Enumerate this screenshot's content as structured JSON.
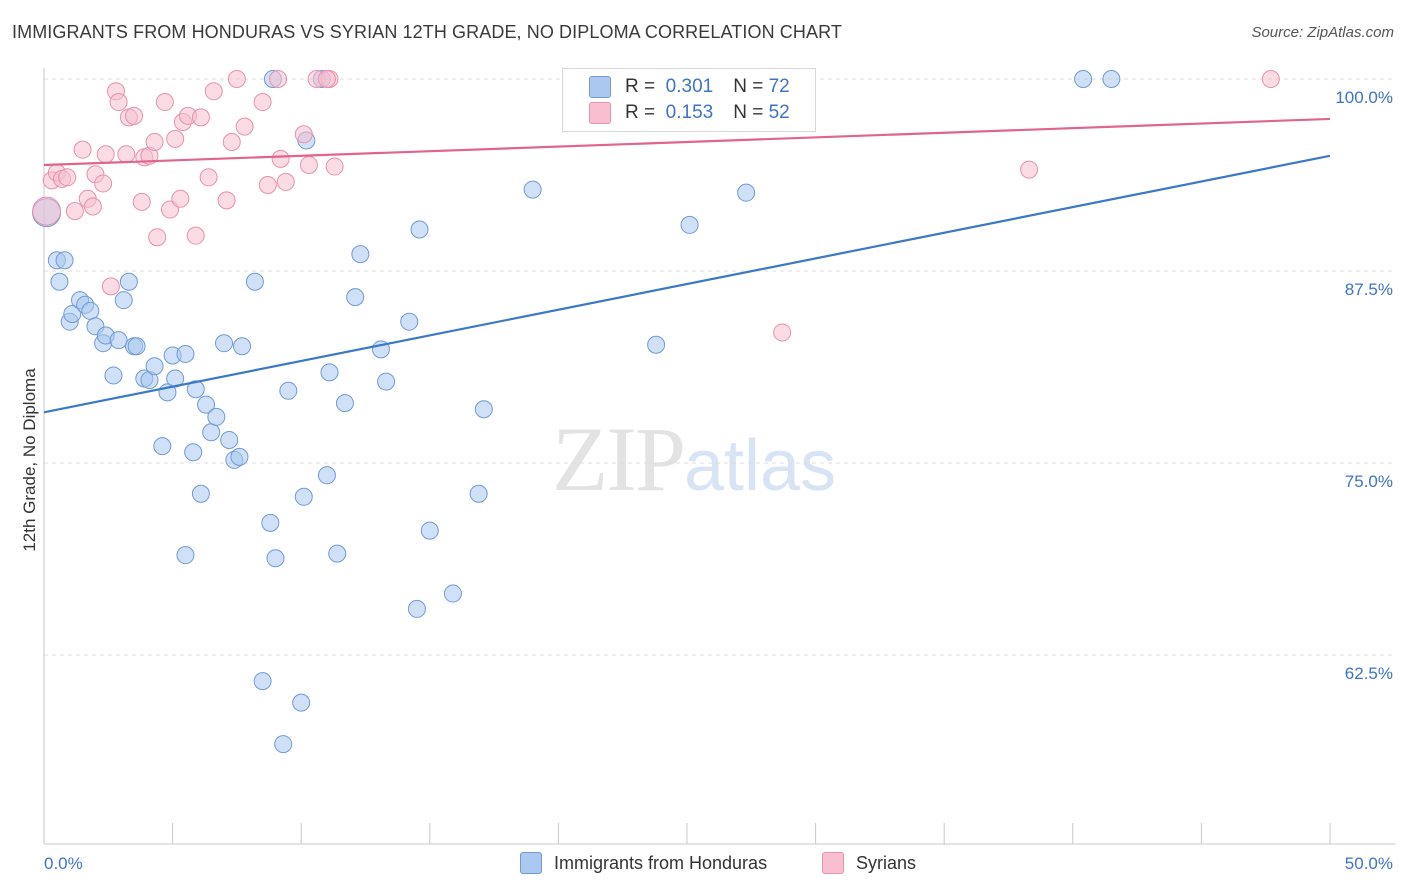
{
  "header": {
    "title": "IMMIGRANTS FROM HONDURAS VS SYRIAN 12TH GRADE, NO DIPLOMA CORRELATION CHART",
    "source": "Source: ZipAtlas.com"
  },
  "watermark": {
    "zip": "ZIP",
    "atlas": "atlas"
  },
  "legend_top": [
    {
      "r_label": "R =",
      "r_value": "0.301",
      "n_label": "N =",
      "n_value": "72",
      "color": "#aac8f0"
    },
    {
      "r_label": "R =",
      "r_value": "0.153",
      "n_label": "N =",
      "n_value": "52",
      "color": "#f7bfd0"
    }
  ],
  "chart_data": {
    "type": "scatter",
    "title": "IMMIGRANTS FROM HONDURAS VS SYRIAN 12TH GRADE, NO DIPLOMA CORRELATION CHART",
    "xlabel": "",
    "ylabel": "12th Grade, No Diploma",
    "xlim": [
      0,
      50
    ],
    "ylim": [
      50,
      100
    ],
    "x_tick_labels": [
      "0.0%",
      "50.0%"
    ],
    "y_ticks": [
      62.5,
      75.0,
      87.5,
      100.0
    ],
    "y_tick_labels": [
      "62.5%",
      "75.0%",
      "87.5%",
      "100.0%"
    ],
    "grid": "horizontal dashed",
    "legend_placement": "bottom",
    "colors": {
      "honduras": "#aac8f0",
      "honduras_line": "#3a78c8",
      "syrians": "#f7bfd0",
      "syrians_line": "#e0658c",
      "tick_label": "#3d74c9"
    },
    "series": [
      {
        "name": "Immigrants from Honduras",
        "trend": [
          [
            0,
            78.3
          ],
          [
            50,
            95.0
          ]
        ],
        "points": [
          [
            0.1,
            91.3
          ],
          [
            0.5,
            88.2
          ],
          [
            0.6,
            86.8
          ],
          [
            0.8,
            88.2
          ],
          [
            1.0,
            84.2
          ],
          [
            1.1,
            84.7
          ],
          [
            1.4,
            85.6
          ],
          [
            1.6,
            85.3
          ],
          [
            1.8,
            84.9
          ],
          [
            2.0,
            83.9
          ],
          [
            2.3,
            82.8
          ],
          [
            2.4,
            83.3
          ],
          [
            2.7,
            80.7
          ],
          [
            2.9,
            83.0
          ],
          [
            3.1,
            85.6
          ],
          [
            3.3,
            86.8
          ],
          [
            3.5,
            82.6
          ],
          [
            3.6,
            82.6
          ],
          [
            3.9,
            80.5
          ],
          [
            4.1,
            80.4
          ],
          [
            4.3,
            81.3
          ],
          [
            4.6,
            76.1
          ],
          [
            4.8,
            79.6
          ],
          [
            5.0,
            82.0
          ],
          [
            5.1,
            80.5
          ],
          [
            5.5,
            82.1
          ],
          [
            5.5,
            69.0
          ],
          [
            5.8,
            75.7
          ],
          [
            5.9,
            79.8
          ],
          [
            6.1,
            73.0
          ],
          [
            6.3,
            78.8
          ],
          [
            6.5,
            77.0
          ],
          [
            6.7,
            78.0
          ],
          [
            7.0,
            82.8
          ],
          [
            7.2,
            76.5
          ],
          [
            7.4,
            75.2
          ],
          [
            7.6,
            75.4
          ],
          [
            7.7,
            82.6
          ],
          [
            8.2,
            86.8
          ],
          [
            8.5,
            60.8
          ],
          [
            8.8,
            71.1
          ],
          [
            8.9,
            100.0
          ],
          [
            9.0,
            68.8
          ],
          [
            9.5,
            79.7
          ],
          [
            10.0,
            59.4
          ],
          [
            10.1,
            72.8
          ],
          [
            10.2,
            96.0
          ],
          [
            9.3,
            56.7
          ],
          [
            10.8,
            100.0
          ],
          [
            11.0,
            74.2
          ],
          [
            11.1,
            80.9
          ],
          [
            11.4,
            69.1
          ],
          [
            11.7,
            78.9
          ],
          [
            12.1,
            85.8
          ],
          [
            12.3,
            88.6
          ],
          [
            13.1,
            82.4
          ],
          [
            13.3,
            80.3
          ],
          [
            14.2,
            84.2
          ],
          [
            14.6,
            90.2
          ],
          [
            14.5,
            65.5
          ],
          [
            15.0,
            70.6
          ],
          [
            15.9,
            66.5
          ],
          [
            16.9,
            73.0
          ],
          [
            17.1,
            78.5
          ],
          [
            19.0,
            92.8
          ],
          [
            23.8,
            82.7
          ],
          [
            25.1,
            90.5
          ],
          [
            27.0,
            100.0
          ],
          [
            27.3,
            92.6
          ],
          [
            28.0,
            100.0
          ],
          [
            40.4,
            100.0
          ],
          [
            41.5,
            100.0
          ]
        ]
      },
      {
        "name": "Syrians",
        "trend": [
          [
            0,
            94.4
          ],
          [
            50,
            97.4
          ]
        ],
        "points": [
          [
            0.1,
            91.4
          ],
          [
            0.3,
            93.4
          ],
          [
            0.5,
            93.9
          ],
          [
            0.7,
            93.5
          ],
          [
            0.9,
            93.6
          ],
          [
            1.2,
            91.4
          ],
          [
            1.5,
            95.4
          ],
          [
            1.7,
            92.2
          ],
          [
            1.9,
            91.7
          ],
          [
            2.0,
            93.8
          ],
          [
            2.3,
            93.2
          ],
          [
            2.4,
            95.1
          ],
          [
            2.6,
            86.5
          ],
          [
            2.8,
            99.2
          ],
          [
            2.9,
            98.5
          ],
          [
            3.2,
            95.1
          ],
          [
            3.3,
            97.5
          ],
          [
            3.5,
            97.6
          ],
          [
            3.8,
            92.0
          ],
          [
            3.9,
            94.9
          ],
          [
            4.1,
            95.0
          ],
          [
            4.3,
            95.9
          ],
          [
            4.4,
            89.7
          ],
          [
            4.7,
            98.5
          ],
          [
            4.9,
            91.5
          ],
          [
            5.1,
            96.1
          ],
          [
            5.3,
            92.2
          ],
          [
            5.4,
            97.2
          ],
          [
            5.6,
            97.6
          ],
          [
            5.9,
            89.8
          ],
          [
            6.1,
            97.5
          ],
          [
            6.4,
            93.6
          ],
          [
            6.6,
            99.2
          ],
          [
            7.1,
            92.1
          ],
          [
            7.3,
            95.9
          ],
          [
            7.5,
            100.0
          ],
          [
            7.8,
            96.9
          ],
          [
            8.5,
            98.5
          ],
          [
            8.7,
            93.1
          ],
          [
            9.1,
            100.0
          ],
          [
            9.2,
            94.8
          ],
          [
            9.4,
            93.3
          ],
          [
            10.1,
            96.4
          ],
          [
            10.3,
            94.4
          ],
          [
            10.6,
            100.0
          ],
          [
            11.1,
            100.0
          ],
          [
            11.3,
            94.3
          ],
          [
            28.7,
            83.5
          ],
          [
            28.9,
            100.0
          ],
          [
            38.3,
            94.1
          ],
          [
            47.7,
            100.0
          ],
          [
            11.0,
            100.0
          ]
        ]
      }
    ]
  },
  "legend_bottom": [
    {
      "label": "Immigrants from Honduras",
      "color": "#aac8f0"
    },
    {
      "label": "Syrians",
      "color": "#f7bfd0"
    }
  ]
}
